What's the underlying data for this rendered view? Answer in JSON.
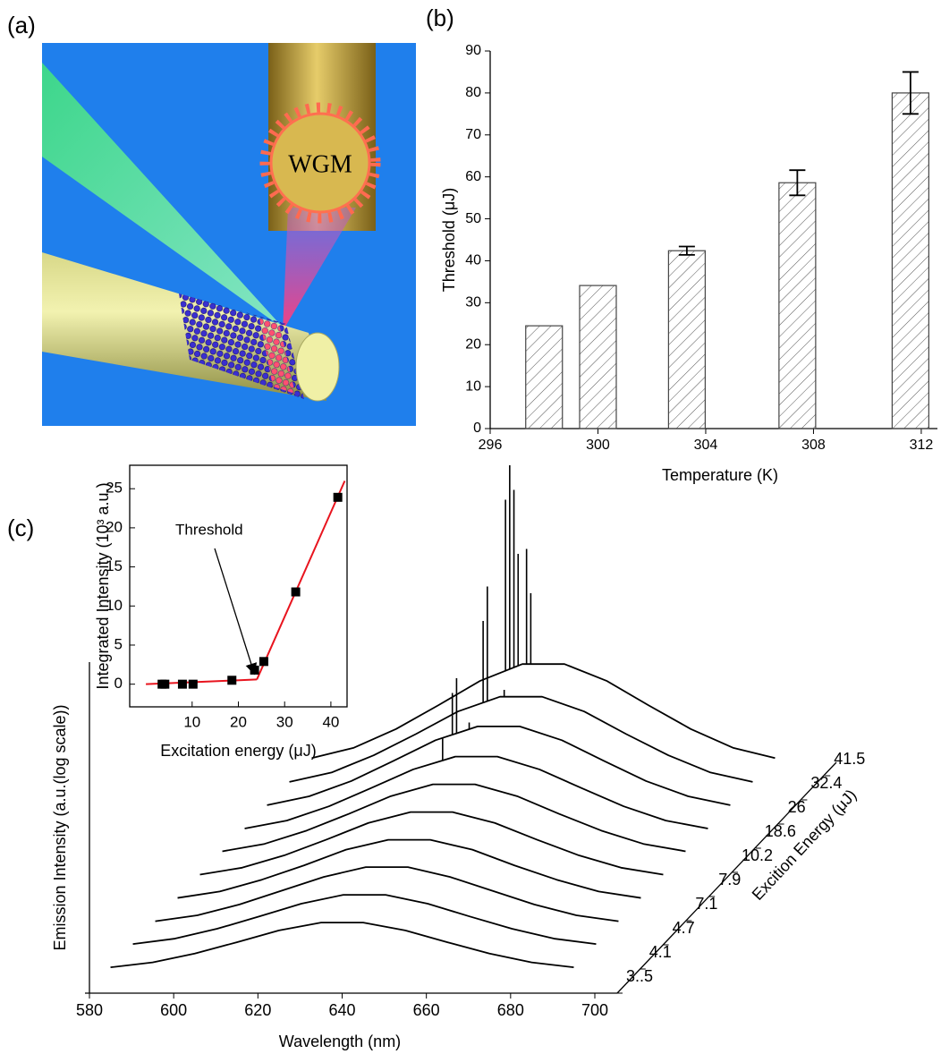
{
  "panel_labels": [
    "(a)",
    "(b)",
    "(c)"
  ],
  "illustration": {
    "label": "WGM"
  },
  "chart_data": [
    {
      "type": "bar",
      "x_label": "Temperature (K)",
      "y_label": "Threshold (μJ)",
      "x": [
        298,
        300,
        303.3,
        307.4,
        311.6
      ],
      "values": [
        24.5,
        34.1,
        42.4,
        58.6,
        80
      ],
      "errors": [
        null,
        null,
        1,
        3,
        5
      ],
      "xlim": [
        296,
        312.6
      ],
      "xticks": [
        296,
        300,
        304,
        308,
        312
      ],
      "ylim": [
        0,
        90
      ],
      "yticks": [
        0,
        10,
        20,
        30,
        40,
        50,
        60,
        70,
        80,
        90
      ],
      "color": "#444444",
      "hatch": true
    },
    {
      "type": "scatter",
      "x_label": "Excitation energy (μJ)",
      "y_label": "Integrated Intensity (10³ a.u.)",
      "annotation": "Threshold",
      "x": [
        3.5,
        4.1,
        7.9,
        10.2,
        18.6,
        23.5,
        25.5,
        32.4,
        41.5
      ],
      "values": [
        0,
        0,
        0,
        0,
        0.5,
        1.8,
        2.9,
        11.8,
        23.9
      ],
      "fit_lines": [
        {
          "x": [
            0,
            24
          ],
          "y": [
            0,
            0.6
          ]
        },
        {
          "x": [
            24,
            43
          ],
          "y": [
            0.6,
            26
          ]
        }
      ],
      "fit_color": "#e8141e",
      "color": "#000000",
      "xlim": [
        -3.5,
        43.5
      ],
      "xticks": [
        10,
        20,
        30,
        40
      ],
      "ylim": [
        -2.9,
        28
      ],
      "yticks": [
        0,
        5,
        10,
        15,
        20,
        25
      ]
    },
    {
      "type": "waterfall",
      "x_label": "Wavelength (nm)",
      "y_label": "Emission Intensity (a.u.(log scale))",
      "z_label": "Excition Energy (μJ)",
      "color": "#000000",
      "x": [
        585,
        595,
        605,
        615,
        625,
        635,
        645,
        655,
        665,
        675,
        685,
        695
      ],
      "xlim": [
        580,
        700
      ],
      "xticks": [
        580,
        600,
        620,
        640,
        660,
        680,
        700
      ],
      "z_ticks": [
        {
          "value": 3.5,
          "label": "3..5"
        },
        4.1,
        4.7,
        7.1,
        7.9,
        10.2,
        18.6,
        26,
        32.4,
        41.5
      ],
      "series": [
        {
          "values": [
            0.07,
            0.17,
            0.35,
            0.58,
            0.82,
            0.98,
            0.98,
            0.82,
            0.58,
            0.35,
            0.17,
            0.07
          ],
          "spikes": []
        },
        {
          "values": [
            0.08,
            0.19,
            0.39,
            0.64,
            0.9,
            1.08,
            1.08,
            0.9,
            0.64,
            0.39,
            0.19,
            0.08
          ],
          "spikes": []
        },
        {
          "values": [
            0.08,
            0.2,
            0.42,
            0.7,
            0.98,
            1.18,
            1.18,
            0.98,
            0.7,
            0.42,
            0.2,
            0.08
          ],
          "spikes": []
        },
        {
          "values": [
            0.09,
            0.22,
            0.46,
            0.75,
            1.07,
            1.27,
            1.27,
            1.07,
            0.75,
            0.46,
            0.22,
            0.09
          ],
          "spikes": []
        },
        {
          "values": [
            0.1,
            0.24,
            0.49,
            0.81,
            1.15,
            1.37,
            1.37,
            1.15,
            0.81,
            0.49,
            0.24,
            0.1
          ],
          "spikes": []
        },
        {
          "values": [
            0.11,
            0.26,
            0.53,
            0.87,
            1.23,
            1.47,
            1.47,
            1.23,
            0.87,
            0.53,
            0.26,
            0.11
          ],
          "spikes": []
        },
        {
          "values": [
            0.11,
            0.27,
            0.56,
            0.93,
            1.31,
            1.57,
            1.57,
            1.31,
            0.93,
            0.56,
            0.27,
            0.11
          ],
          "spikes": [
            {
              "x": 632,
              "value": 1.95
            }
          ]
        },
        {
          "values": [
            0.12,
            0.3,
            0.61,
            1.02,
            1.44,
            1.72,
            1.72,
            1.44,
            1.02,
            0.61,
            0.3,
            0.12
          ],
          "spikes": [
            {
              "x": 629,
              "value": 2.4
            },
            {
              "x": 630,
              "value": 2.7
            },
            {
              "x": 633,
              "value": 1.8
            }
          ]
        },
        {
          "values": [
            0.13,
            0.32,
            0.67,
            1.1,
            1.56,
            1.86,
            1.86,
            1.56,
            1.1,
            0.67,
            0.32,
            0.13
          ],
          "spikes": [
            {
              "x": 631,
              "value": 3.4
            },
            {
              "x": 632,
              "value": 4.1
            },
            {
              "x": 636,
              "value": 2.0
            }
          ]
        },
        {
          "values": [
            0.15,
            0.36,
            0.74,
            1.22,
            1.72,
            2.06,
            2.06,
            1.72,
            1.22,
            0.74,
            0.36,
            0.15
          ],
          "spikes": [
            {
              "x": 631,
              "value": 5.4
            },
            {
              "x": 632,
              "value": 6.1
            },
            {
              "x": 633,
              "value": 5.6
            },
            {
              "x": 634,
              "value": 4.3
            },
            {
              "x": 636,
              "value": 4.4
            },
            {
              "x": 637,
              "value": 3.5
            }
          ]
        }
      ]
    }
  ]
}
